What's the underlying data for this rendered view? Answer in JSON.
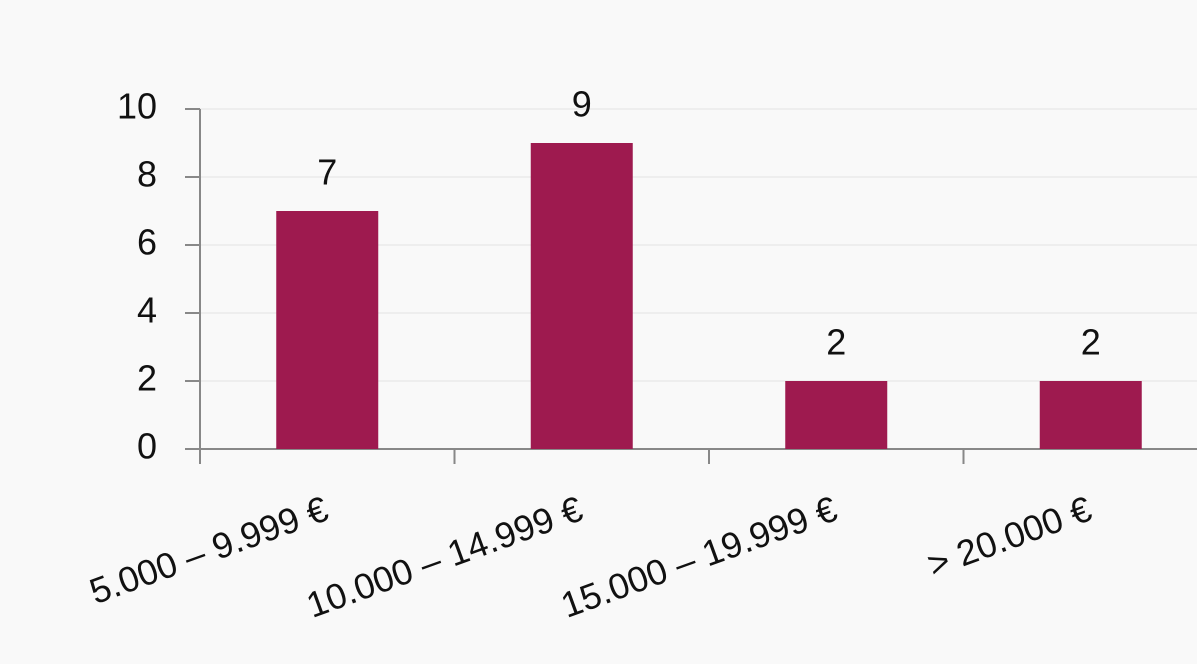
{
  "chart_data": {
    "type": "bar",
    "categories": [
      "5.000 – 9.999 €",
      "10.000 – 14.999 €",
      "15.000 – 19.999 €",
      "> 20.000 €"
    ],
    "values": [
      7,
      9,
      2,
      2
    ],
    "color": "#9e1a4f",
    "ylim": [
      0,
      10
    ],
    "yticks": [
      0,
      2,
      4,
      6,
      8,
      10
    ],
    "grid": true
  }
}
